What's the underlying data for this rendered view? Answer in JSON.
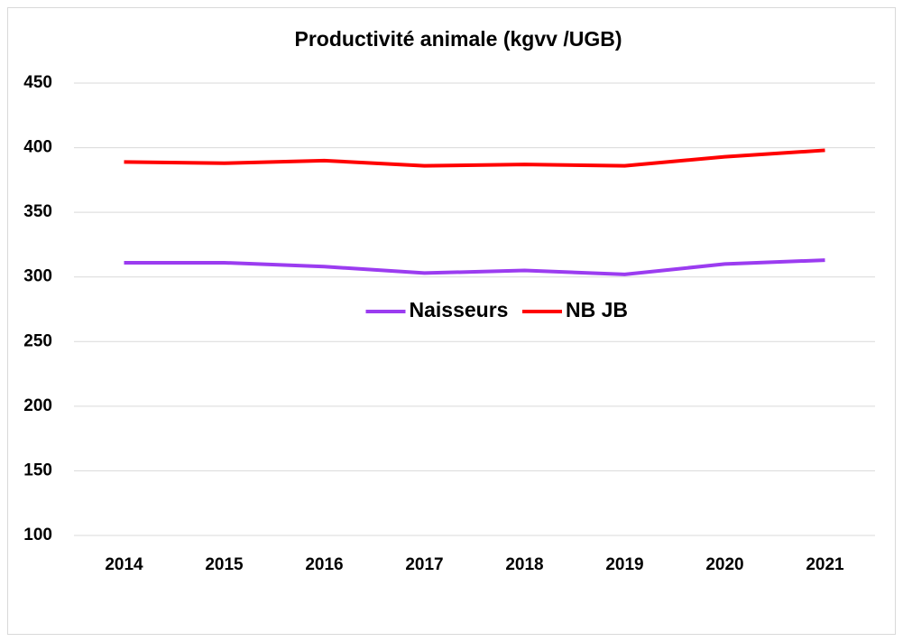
{
  "chart_data": {
    "type": "line",
    "title": "Productivité animale (kgvv /UGB)",
    "categories": [
      "2014",
      "2015",
      "2016",
      "2017",
      "2018",
      "2019",
      "2020",
      "2021"
    ],
    "series": [
      {
        "name": "Naisseurs",
        "color": "#9b3cf0",
        "values": [
          311,
          311,
          308,
          303,
          305,
          302,
          310,
          313
        ]
      },
      {
        "name": "NB JB",
        "color": "#ff0000",
        "values": [
          389,
          388,
          390,
          386,
          387,
          386,
          393,
          398
        ]
      }
    ],
    "ylim": [
      100,
      450
    ],
    "yticks": [
      100,
      150,
      200,
      250,
      300,
      350,
      400,
      450
    ],
    "grid": true,
    "legend": "center"
  }
}
